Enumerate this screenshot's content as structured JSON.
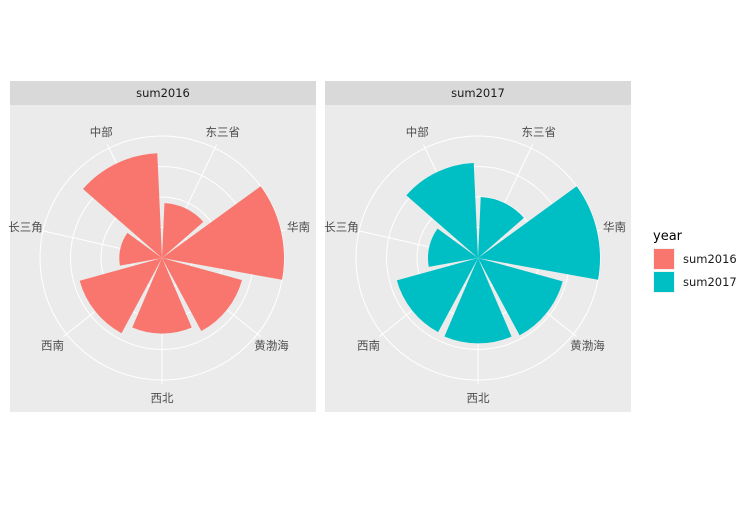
{
  "chart_data": [
    {
      "type": "bar",
      "coord": "polar",
      "facet": "sum2016",
      "categories": [
        "东三省",
        "华南",
        "黄渤海",
        "西北",
        "西南",
        "长三角",
        "中部"
      ],
      "values": [
        0.45,
        1.0,
        0.68,
        0.62,
        0.7,
        0.35,
        0.86
      ],
      "color": "#F8766D",
      "ring_count": 4,
      "grid": true
    },
    {
      "type": "bar",
      "coord": "polar",
      "facet": "sum2017",
      "categories": [
        "东三省",
        "华南",
        "黄渤海",
        "西北",
        "西南",
        "长三角",
        "中部"
      ],
      "values": [
        0.5,
        1.0,
        0.72,
        0.7,
        0.69,
        0.41,
        0.78
      ],
      "color": "#00BFC4",
      "ring_count": 4,
      "grid": true
    }
  ],
  "legend": {
    "title": "year",
    "items": [
      {
        "label": "sum2016",
        "color": "#F8766D"
      },
      {
        "label": "sum2017",
        "color": "#00BFC4"
      }
    ]
  }
}
